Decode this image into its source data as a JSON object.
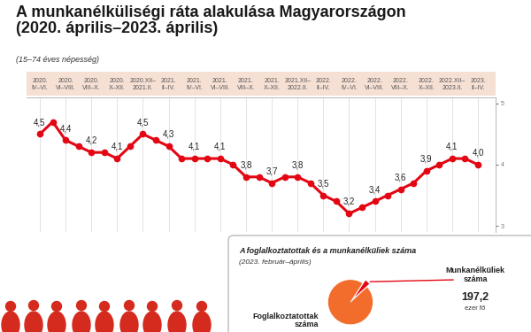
{
  "chart_data": [
    {
      "type": "line",
      "title": "A munkanélküliségi ráta alakulása Magyarországon\n(2020. április–2023. április)",
      "subtitle": "(15–74 éves népesség)",
      "categories": [
        "2020.\nIV–VI.",
        null,
        "2020.\nVI–VIII.",
        null,
        "2020.\nVIII–X.",
        null,
        "2020.\nX–XII.",
        null,
        "2020.XII–\n2021.II.",
        null,
        "2021.\nII–IV.",
        null,
        "2021.\nIV–VI.",
        null,
        "2021.\nVI–VIII.",
        null,
        "2021.\nVIII–X.",
        null,
        "2021.\nX–XII.",
        null,
        "2021.XII–\n2022.II.",
        null,
        "2022.\nII–IV.",
        null,
        "2022.\nIV–VI.",
        null,
        "2022.\nVI–VIII.",
        null,
        "2022.\nVIII–X.",
        null,
        "2022.\nX–XII.",
        null,
        "2022.XII–\n2023.II.",
        null,
        "2023.\nII–IV."
      ],
      "values": [
        4.5,
        4.7,
        4.4,
        4.3,
        4.2,
        4.2,
        4.1,
        4.3,
        4.5,
        4.4,
        4.3,
        4.1,
        4.1,
        4.1,
        4.1,
        4.0,
        3.8,
        3.8,
        3.7,
        3.8,
        3.8,
        3.7,
        3.5,
        3.4,
        3.2,
        3.3,
        3.4,
        3.5,
        3.6,
        3.7,
        3.9,
        4.0,
        4.1,
        4.1,
        4.0
      ],
      "value_labels": [
        "4,5",
        null,
        "4,4",
        null,
        "4,2",
        null,
        "4,1",
        null,
        "4,5",
        null,
        "4,3",
        null,
        "4,1",
        null,
        "4,1",
        null,
        "3,8",
        null,
        "3,7",
        null,
        "3,8",
        null,
        "3,5",
        null,
        "3,2",
        null,
        "3,4",
        null,
        "3,6",
        null,
        "3,9",
        null,
        "4,1",
        null,
        "4,0"
      ],
      "data_labels": true,
      "color": "#e30613",
      "marker": "circle",
      "line_style": "solid",
      "ylim": [
        2.9,
        5.1
      ],
      "yticks": [
        3,
        4,
        5
      ],
      "grid": true
    },
    {
      "type": "pie",
      "title": "A foglalkoztatottak és a munkanélküliek száma",
      "subtitle": "(2023. február–április)",
      "categories": [
        "Foglalkoztatottak\nszáma",
        "Munkanélküliek\nszáma"
      ],
      "values": [
        4700,
        197.2
      ],
      "value_labels": [
        null,
        "197,2"
      ],
      "unit": "ezer fő",
      "data_labels": true,
      "colors": [
        "#f26c2b",
        "#e30613"
      ]
    }
  ]
}
